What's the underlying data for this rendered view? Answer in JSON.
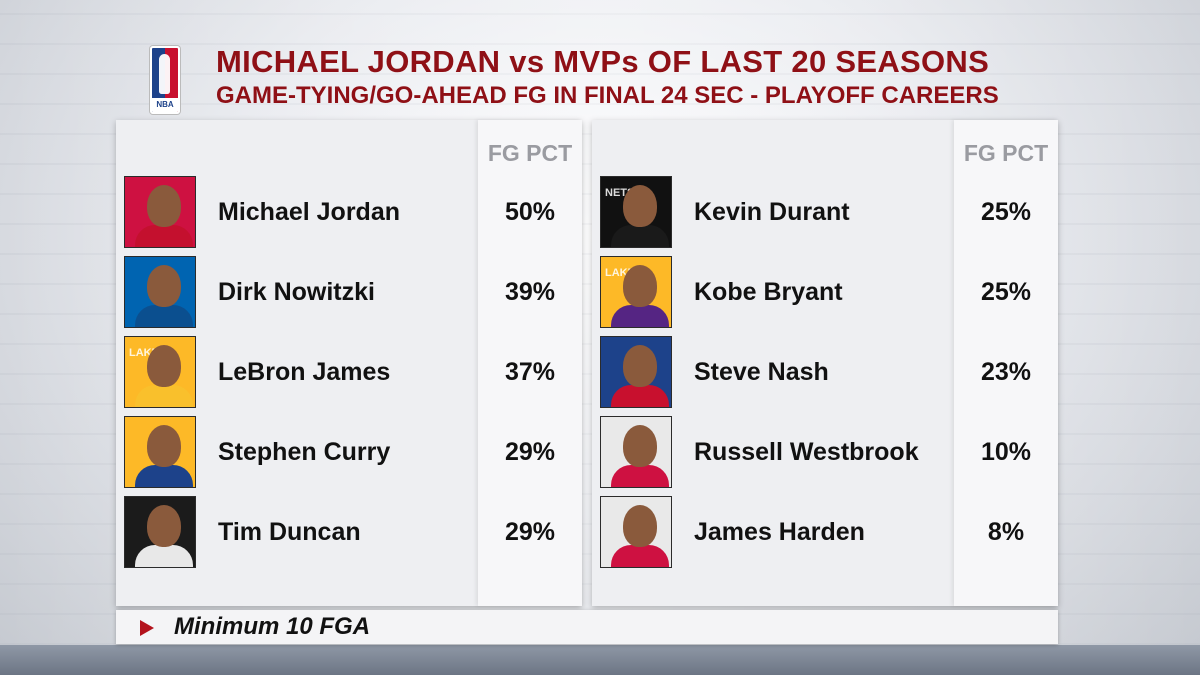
{
  "header": {
    "logo_text": "NBA",
    "title": "MICHAEL JORDAN vs MVPs OF LAST 20 SEASONS",
    "subtitle": "GAME-TYING/GO-AHEAD FG IN FINAL 24 SEC - PLAYOFF CAREERS"
  },
  "left_table": {
    "column_header": "FG PCT",
    "rows": [
      {
        "name": "Michael Jordan",
        "pct": "50%",
        "team_color": "#ce1141",
        "jersey": "#c4102e",
        "mark": ""
      },
      {
        "name": "Dirk Nowitzki",
        "pct": "39%",
        "team_color": "#0064b1",
        "jersey": "#0b4f8f",
        "mark": ""
      },
      {
        "name": "LeBron James",
        "pct": "37%",
        "team_color": "#fdb927",
        "jersey": "#f9c02c",
        "mark": "LAKERS"
      },
      {
        "name": "Stephen Curry",
        "pct": "29%",
        "team_color": "#fdb927",
        "jersey": "#1d428a",
        "mark": ""
      },
      {
        "name": "Tim Duncan",
        "pct": "29%",
        "team_color": "#1b1b1b",
        "jersey": "#e8e8e8",
        "mark": ""
      }
    ]
  },
  "right_table": {
    "column_header": "FG PCT",
    "rows": [
      {
        "name": "Kevin Durant",
        "pct": "25%",
        "team_color": "#111111",
        "jersey": "#1a1a1a",
        "mark": "NETS"
      },
      {
        "name": "Kobe Bryant",
        "pct": "25%",
        "team_color": "#fdb927",
        "jersey": "#552583",
        "mark": "LAKERS"
      },
      {
        "name": "Steve Nash",
        "pct": "23%",
        "team_color": "#1d428a",
        "jersey": "#c8102e",
        "mark": ""
      },
      {
        "name": "Russell Westbrook",
        "pct": "10%",
        "team_color": "#e9e9e9",
        "jersey": "#ce1141",
        "mark": ""
      },
      {
        "name": "James Harden",
        "pct": "8%",
        "team_color": "#e9e9e9",
        "jersey": "#ce1141",
        "mark": ""
      }
    ]
  },
  "footer": {
    "note": "Minimum 10 FGA",
    "accent_color": "#b3121c"
  },
  "colors": {
    "title": "#8f1016",
    "column_header": "#9a9ba1"
  }
}
